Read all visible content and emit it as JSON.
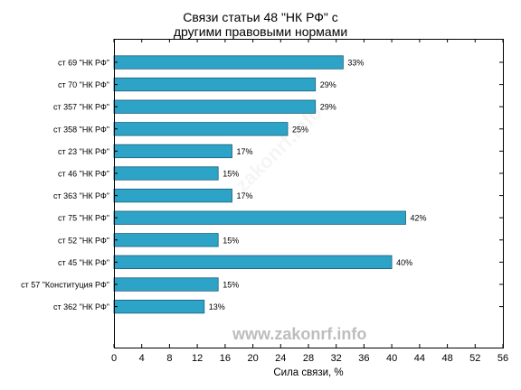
{
  "chart_data": {
    "type": "bar",
    "orientation": "horizontal",
    "title": "Связи статьи 48 \"НК РФ\" с\nдругими правовыми нормами",
    "xlabel": "Сила связи, %",
    "ylabel": "",
    "xlim": [
      0,
      56
    ],
    "x_ticks": [
      0,
      4,
      8,
      12,
      16,
      20,
      24,
      28,
      32,
      36,
      40,
      44,
      48,
      52,
      56
    ],
    "grid": false,
    "bar_color": "#2ea3c8",
    "categories": [
      "ст 69 \"НК РФ\"",
      "ст 70 \"НК РФ\"",
      "ст 357 \"НК РФ\"",
      "ст 358 \"НК РФ\"",
      "ст 23 \"НК РФ\"",
      "ст 46 \"НК РФ\"",
      "ст 363 \"НК РФ\"",
      "ст 75 \"НК РФ\"",
      "ст 52 \"НК РФ\"",
      "ст 45 \"НК РФ\"",
      "ст 57 \"Конституция РФ\"",
      "ст 362 \"НК РФ\""
    ],
    "values": [
      33,
      29,
      29,
      25,
      17,
      15,
      17,
      42,
      15,
      40,
      15,
      13
    ],
    "value_labels": [
      "33%",
      "29%",
      "29%",
      "25%",
      "17%",
      "15%",
      "17%",
      "42%",
      "15%",
      "40%",
      "15%",
      "13%"
    ]
  },
  "title_lines": [
    "Связи статьи 48 \"НК РФ\" с",
    "другими правовыми нормами"
  ],
  "watermark": "www.zakonrf.info",
  "watermark_faint": "zakonrf.info"
}
